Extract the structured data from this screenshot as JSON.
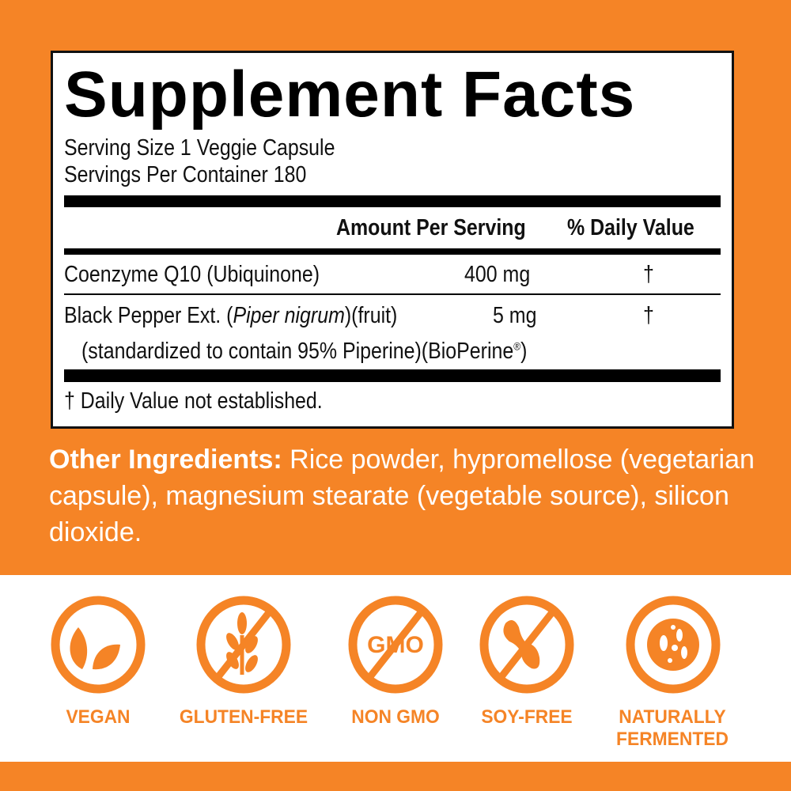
{
  "label": {
    "title": "Supplement Facts",
    "serving_size": "Serving Size  1 Veggie Capsule",
    "servings_per_container": "Servings Per Container  180",
    "header_amount": "Amount Per Serving",
    "header_dv": "% Daily Value",
    "rows": [
      {
        "name": "Coenzyme Q10 (Ubiquinone)",
        "amount": "400 mg",
        "dv": "†"
      },
      {
        "name_prefix": "Black Pepper Ext. (",
        "name_italic": "Piper nigrum",
        "name_suffix": ")(fruit)",
        "amount": "5 mg",
        "dv": "†",
        "sub": "(standardized to contain 95% Piperine)(BioPerine",
        "sub_mark": "®",
        "sub_end": ")"
      }
    ],
    "footnote": "† Daily Value not established."
  },
  "other_ingredients": {
    "heading": "Other Ingredients:",
    "text": " Rice powder, hypromellose (vegetarian capsule), magnesium stearate (vegetable source), silicon dioxide."
  },
  "badges": [
    {
      "icon": "leaf-icon",
      "label": "VEGAN"
    },
    {
      "icon": "wheat-crossed-icon",
      "label": "GLUTEN-FREE"
    },
    {
      "icon": "gmo-crossed-icon",
      "label": "NON GMO",
      "icon_text": "GMO"
    },
    {
      "icon": "soy-crossed-icon",
      "label": "SOY-FREE"
    },
    {
      "icon": "ferment-icon",
      "label": "NATURALLY FERMENTED"
    }
  ],
  "colors": {
    "brand_orange": "#F58426",
    "ink": "#111111"
  }
}
